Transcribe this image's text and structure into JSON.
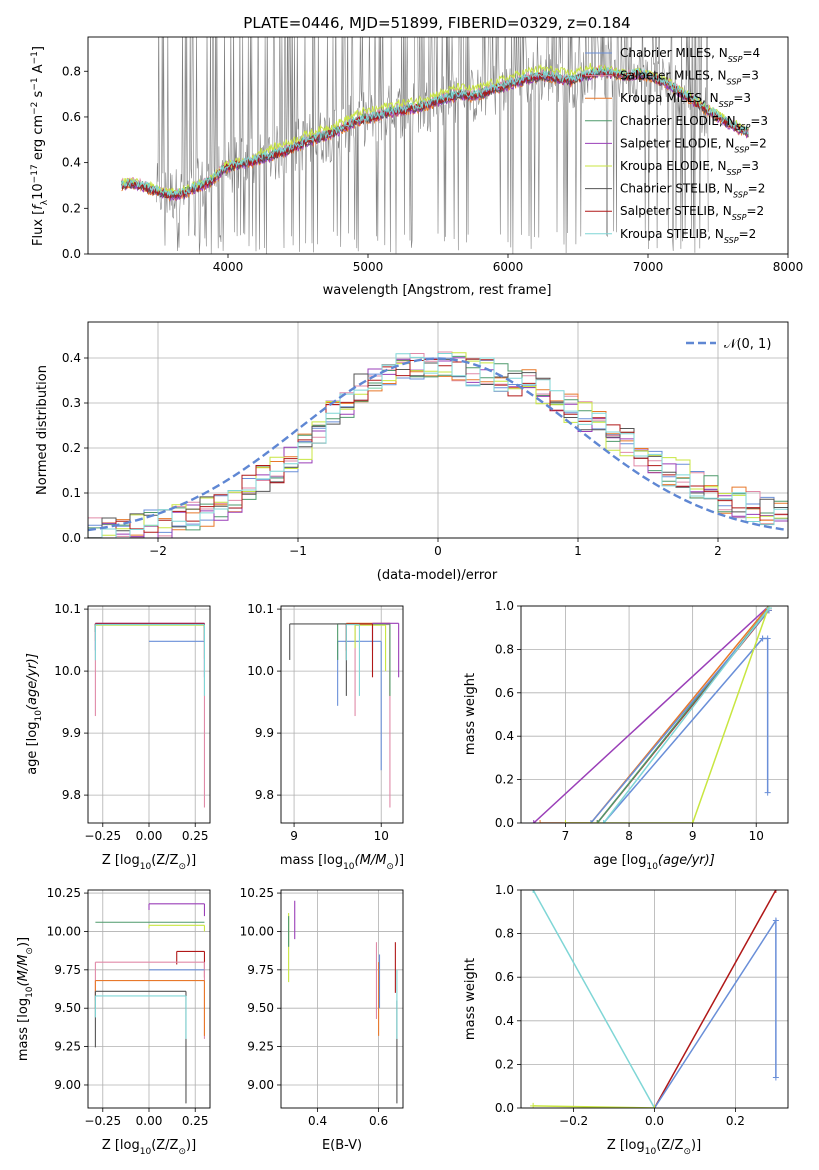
{
  "colors": {
    "chabrier_miles": "#6a8fd8",
    "salpeter_miles": "#e08aa8",
    "kroupa_miles": "#e8782a",
    "chabrier_elodie": "#4f9a6c",
    "salpeter_elodie": "#9a3fb8",
    "kroupa_elodie": "#c8e640",
    "chabrier_stelib": "#555555",
    "salpeter_stelib": "#b01818",
    "kroupa_stelib": "#7fd6d6",
    "data": "#808080",
    "gauss": "#5f87d3"
  },
  "legend": [
    {
      "base": "Chabrier MILES, N",
      "val": "=4",
      "color": "#6a8fd8"
    },
    {
      "base": "Salpeter MILES, N",
      "val": "=3",
      "color": "#e08aa8"
    },
    {
      "base": "Kroupa MILES, N",
      "val": "=3",
      "color": "#e8782a"
    },
    {
      "base": "Chabrier ELODIE, N",
      "val": "=3",
      "color": "#4f9a6c"
    },
    {
      "base": "Salpeter ELODIE, N",
      "val": "=2",
      "color": "#9a3fb8"
    },
    {
      "base": "Kroupa ELODIE, N",
      "val": "=3",
      "color": "#c8e640"
    },
    {
      "base": "Chabrier STELIB, N",
      "val": "=2",
      "color": "#555555"
    },
    {
      "base": "Salpeter STELIB, N",
      "val": "=2",
      "color": "#b01818"
    },
    {
      "base": "Kroupa STELIB, N",
      "val": "=2",
      "color": "#7fd6d6"
    }
  ],
  "chart_data": [
    {
      "type": "line",
      "title": "PLATE=0446, MJD=51899, FIBERID=0329, z=0.184",
      "xlabel": "wavelength [Angstrom, rest frame]",
      "ylabel_pre": "Flux [",
      "ylabel_sym": "f",
      "ylabel_sub": "λ",
      "ylabel_mid": "10",
      "ylabel_e1": "−17",
      "ylabel_txt": " erg cm",
      "ylabel_e2": "−2",
      "ylabel_s": " s",
      "ylabel_e3": "−1",
      "ylabel_a": " A",
      "ylabel_e4": "−1",
      "ylabel_end": "]",
      "xlim": [
        3000,
        8000
      ],
      "ylim": [
        0,
        0.95
      ],
      "xticks": [
        4000,
        5000,
        6000,
        7000,
        8000
      ],
      "yticks": [
        0.0,
        0.2,
        0.4,
        0.6,
        0.8
      ],
      "model_continuum": {
        "x": [
          3240,
          3300,
          3380,
          3460,
          3520,
          3580,
          3650,
          3700,
          3760,
          3820,
          3880,
          3930,
          3990,
          4060,
          4150,
          4250,
          4350,
          4450,
          4550,
          4650,
          4750,
          4850,
          4950,
          5050,
          5150,
          5250,
          5350,
          5450,
          5550,
          5650,
          5750,
          5850,
          5950,
          6050,
          6150,
          6250,
          6350,
          6450,
          6550,
          6650,
          6750,
          6850,
          6950,
          7050,
          7150,
          7250,
          7350,
          7450,
          7550,
          7650,
          7720
        ],
        "y": [
          0.3,
          0.31,
          0.3,
          0.28,
          0.27,
          0.26,
          0.26,
          0.27,
          0.29,
          0.3,
          0.32,
          0.35,
          0.38,
          0.39,
          0.4,
          0.42,
          0.44,
          0.46,
          0.49,
          0.51,
          0.53,
          0.56,
          0.59,
          0.6,
          0.62,
          0.63,
          0.64,
          0.66,
          0.68,
          0.7,
          0.69,
          0.71,
          0.73,
          0.75,
          0.77,
          0.78,
          0.77,
          0.76,
          0.78,
          0.8,
          0.79,
          0.78,
          0.79,
          0.77,
          0.74,
          0.7,
          0.66,
          0.62,
          0.58,
          0.55,
          0.53
        ]
      },
      "data_range": [
        3490,
        7430
      ]
    },
    {
      "type": "bar",
      "xlabel": "(data-model)/error",
      "ylabel": "Normed distribution",
      "xlim": [
        -2.5,
        2.5
      ],
      "ylim": [
        0,
        0.48
      ],
      "xticks": [
        -2,
        -1,
        0,
        1,
        2
      ],
      "yticks": [
        0.0,
        0.1,
        0.2,
        0.3,
        0.4
      ],
      "legend_label": "𝒩(0, 1)",
      "bin_edges": [
        -2.5,
        -2.4,
        -2.3,
        -2.2,
        -2.1,
        -2.0,
        -1.9,
        -1.8,
        -1.7,
        -1.6,
        -1.5,
        -1.4,
        -1.3,
        -1.2,
        -1.1,
        -1.0,
        -0.9,
        -0.8,
        -0.7,
        -0.6,
        -0.5,
        -0.4,
        -0.3,
        -0.2,
        -0.1,
        0.0,
        0.1,
        0.2,
        0.3,
        0.4,
        0.5,
        0.6,
        0.7,
        0.8,
        0.9,
        1.0,
        1.1,
        1.2,
        1.3,
        1.4,
        1.5,
        1.6,
        1.7,
        1.8,
        1.9,
        2.0,
        2.1,
        2.2,
        2.3,
        2.4,
        2.5
      ],
      "hist_base": [
        0.01,
        0.01,
        0.01,
        0.02,
        0.03,
        0.03,
        0.04,
        0.05,
        0.06,
        0.07,
        0.09,
        0.11,
        0.13,
        0.15,
        0.18,
        0.2,
        0.23,
        0.27,
        0.3,
        0.33,
        0.36,
        0.37,
        0.38,
        0.38,
        0.37,
        0.38,
        0.38,
        0.37,
        0.37,
        0.36,
        0.35,
        0.34,
        0.33,
        0.31,
        0.29,
        0.27,
        0.25,
        0.23,
        0.21,
        0.19,
        0.17,
        0.15,
        0.14,
        0.12,
        0.11,
        0.09,
        0.08,
        0.07,
        0.06,
        0.06
      ],
      "gauss_mu": 0,
      "gauss_sigma": 1
    },
    {
      "type": "scatter",
      "xlabel_pre": "Z [log",
      "xlabel_sub": "10",
      "xlabel_post": "(Z/Z",
      "xlabel_end": ")]",
      "ylabel_pre": "age  [log",
      "ylabel_sub": "10",
      "ylabel_post": "(age/yr)]",
      "xlim": [
        -0.33,
        0.33
      ],
      "ylim": [
        9.755,
        10.105
      ],
      "xticks": [
        -0.25,
        0.0,
        0.25
      ],
      "xtick_labels": [
        "−0.25",
        "0.00",
        "0.25"
      ],
      "yticks": [
        9.8,
        9.9,
        10.0,
        10.1
      ],
      "segments": [
        {
          "c": "chabrier_miles",
          "x1": -0.29,
          "x2": 0.3,
          "y": 10.075,
          "ylow": 10.075
        },
        {
          "c": "chabrier_miles",
          "x1": 0.0,
          "x2": 0.3,
          "y": 10.048,
          "ylow": 10.048
        },
        {
          "c": "salpeter_miles",
          "x1": -0.29,
          "x2": 0.3,
          "y": 10.075,
          "ylow": 9.78
        },
        {
          "c": "kroupa_miles",
          "x1": -0.29,
          "x2": 0.3,
          "y": 10.077,
          "ylow": 10.02
        },
        {
          "c": "chabrier_elodie",
          "x1": -0.29,
          "x2": 0.3,
          "y": 10.076,
          "ylow": 10.05
        },
        {
          "c": "salpeter_elodie",
          "x1": -0.29,
          "x2": 0.3,
          "y": 10.077,
          "ylow": 9.99
        },
        {
          "c": "kroupa_elodie",
          "x1": -0.29,
          "x2": 0.3,
          "y": 10.074,
          "ylow": 10.06
        },
        {
          "c": "chabrier_stelib",
          "x1": -0.29,
          "x2": 0.3,
          "y": 10.076,
          "ylow": 10.05
        },
        {
          "c": "salpeter_stelib",
          "x1": -0.29,
          "x2": 0.3,
          "y": 10.076,
          "ylow": 10.07
        },
        {
          "c": "kroupa_stelib",
          "x1": -0.29,
          "x2": 0.3,
          "y": 10.075,
          "ylow": 9.96
        }
      ]
    },
    {
      "type": "scatter",
      "xlabel_pre": "mass [log",
      "xlabel_sub": "10",
      "xlabel_post": "(M/M",
      "xlabel_end": ")]",
      "xlim": [
        8.85,
        10.25
      ],
      "ylim": [
        9.755,
        10.105
      ],
      "xticks": [
        9,
        10
      ],
      "yticks": [
        9.8,
        9.9,
        10.0,
        10.1
      ],
      "segments": [
        {
          "c": "chabrier_miles",
          "x1": 9.5,
          "x2": 10.0,
          "y": 10.048,
          "ylow": 9.84
        },
        {
          "c": "salpeter_miles",
          "x1": 9.7,
          "x2": 10.1,
          "y": 10.075,
          "ylow": 9.78
        },
        {
          "c": "kroupa_miles",
          "x1": 9.6,
          "x2": 10.1,
          "y": 10.077,
          "ylow": 9.96
        },
        {
          "c": "chabrier_elodie",
          "x1": 9.5,
          "x2": 10.1,
          "y": 10.076,
          "ylow": 9.96
        },
        {
          "c": "salpeter_elodie",
          "x1": 9.9,
          "x2": 10.2,
          "y": 10.077,
          "ylow": 9.99
        },
        {
          "c": "kroupa_elodie",
          "x1": 9.7,
          "x2": 10.05,
          "y": 10.074,
          "ylow": 10.0
        },
        {
          "c": "chabrier_stelib",
          "x1": 8.95,
          "x2": 9.6,
          "y": 10.076,
          "ylow": 9.96
        },
        {
          "c": "salpeter_stelib",
          "x1": 9.6,
          "x2": 9.9,
          "y": 10.076,
          "ylow": 9.99
        },
        {
          "c": "kroupa_stelib",
          "x1": 9.6,
          "x2": 9.75,
          "y": 10.075,
          "ylow": 9.96
        }
      ]
    },
    {
      "type": "line",
      "xlabel_pre": "age  [log",
      "xlabel_sub": "10",
      "xlabel_post": "(age/yr)]",
      "ylabel": "mass weight",
      "xlim": [
        6.3,
        10.5
      ],
      "ylim": [
        0,
        1.0
      ],
      "xticks": [
        7,
        8,
        9,
        10
      ],
      "yticks": [
        0.0,
        0.2,
        0.4,
        0.6,
        0.8,
        1.0
      ],
      "lines": [
        {
          "c": "salpeter_elodie",
          "x": [
            6.5,
            10.2
          ],
          "y": [
            0.0,
            1.0
          ]
        },
        {
          "c": "kroupa_miles",
          "x": [
            6.6,
            7.4,
            10.2
          ],
          "y": [
            0.0,
            0.0,
            1.0
          ]
        },
        {
          "c": "salpeter_stelib",
          "x": [
            7.5,
            10.2
          ],
          "y": [
            0.0,
            0.98
          ]
        },
        {
          "c": "chabrier_elodie",
          "x": [
            7.5,
            10.2
          ],
          "y": [
            0.0,
            0.99
          ]
        },
        {
          "c": "chabrier_miles",
          "x": [
            7.6,
            10.1,
            10.1,
            10.18,
            10.18
          ],
          "y": [
            0.0,
            0.85,
            0.85,
            0.85,
            0.14
          ]
        },
        {
          "c": "chabrier_miles",
          "x": [
            7.4,
            10.2
          ],
          "y": [
            0.0,
            0.98
          ]
        },
        {
          "c": "kroupa_elodie",
          "x": [
            7.0,
            9.0,
            10.2
          ],
          "y": [
            0.0,
            0.0,
            1.0
          ]
        },
        {
          "c": "kroupa_stelib",
          "x": [
            7.6,
            10.2
          ],
          "y": [
            0.0,
            0.99
          ]
        }
      ]
    },
    {
      "type": "scatter",
      "xlabel_pre": "Z [log",
      "xlabel_sub": "10",
      "xlabel_post": "(Z/Z",
      "xlabel_end": ")]",
      "ylabel_pre": "mass [log",
      "ylabel_sub": "10",
      "ylabel_post": "(M/M",
      "ylabel_end": ")]",
      "xlim": [
        -0.33,
        0.33
      ],
      "ylim": [
        8.85,
        10.27
      ],
      "xticks": [
        -0.25,
        0.0,
        0.25
      ],
      "xtick_labels": [
        "−0.25",
        "0.00",
        "0.25"
      ],
      "yticks": [
        9.0,
        9.25,
        9.5,
        9.75,
        10.0,
        10.25
      ],
      "ytick_labels": [
        "9.00",
        "9.25",
        "9.50",
        "9.75",
        "10.00",
        "10.25"
      ],
      "segments": [
        {
          "c": "salpeter_elodie",
          "x1": 0.0,
          "x2": 0.3,
          "y": 10.18,
          "ylow": 10.1
        },
        {
          "c": "chabrier_elodie",
          "x1": -0.29,
          "x2": 0.3,
          "y": 10.06,
          "ylow": 10.06
        },
        {
          "c": "kroupa_elodie",
          "x1": 0.0,
          "x2": 0.3,
          "y": 10.04,
          "ylow": 10.0
        },
        {
          "c": "salpeter_stelib",
          "x1": 0.15,
          "x2": 0.3,
          "y": 9.87,
          "ylow": 9.7
        },
        {
          "c": "salpeter_miles",
          "x1": -0.29,
          "x2": 0.3,
          "y": 9.8,
          "ylow": 9.3
        },
        {
          "c": "chabrier_miles",
          "x1": 0.0,
          "x2": 0.3,
          "y": 9.75,
          "ylow": 9.75
        },
        {
          "c": "kroupa_miles",
          "x1": -0.29,
          "x2": 0.3,
          "y": 9.68,
          "ylow": 9.32
        },
        {
          "c": "chabrier_stelib",
          "x1": -0.29,
          "x2": 0.2,
          "y": 9.61,
          "ylow": 8.88
        },
        {
          "c": "kroupa_stelib",
          "x1": -0.29,
          "x2": 0.2,
          "y": 9.58,
          "ylow": 9.3
        }
      ]
    },
    {
      "type": "scatter",
      "xlabel": "E(B-V)",
      "xlim": [
        0.28,
        0.68
      ],
      "ylim": [
        8.85,
        10.27
      ],
      "xticks": [
        0.4,
        0.6
      ],
      "yticks": [
        9.0,
        9.25,
        9.5,
        9.75,
        10.0,
        10.25
      ],
      "ytick_labels": [
        "9.00",
        "9.25",
        "9.50",
        "9.75",
        "10.00",
        "10.25"
      ],
      "vlines": [
        {
          "c": "salpeter_elodie",
          "x": 0.325,
          "y1": 9.95,
          "y2": 10.2
        },
        {
          "c": "kroupa_elodie",
          "x": 0.305,
          "y1": 9.67,
          "y2": 10.12
        },
        {
          "c": "chabrier_elodie",
          "x": 0.305,
          "y1": 9.9,
          "y2": 10.1
        },
        {
          "c": "salpeter_miles",
          "x": 0.593,
          "y1": 9.43,
          "y2": 9.93
        },
        {
          "c": "kroupa_miles",
          "x": 0.6,
          "y1": 9.32,
          "y2": 9.8
        },
        {
          "c": "chabrier_miles",
          "x": 0.603,
          "y1": 9.5,
          "y2": 9.85
        },
        {
          "c": "salpeter_stelib",
          "x": 0.655,
          "y1": 9.6,
          "y2": 9.93
        },
        {
          "c": "chabrier_stelib",
          "x": 0.66,
          "y1": 8.88,
          "y2": 9.55
        },
        {
          "c": "kroupa_stelib",
          "x": 0.66,
          "y1": 9.3,
          "y2": 9.75
        }
      ]
    },
    {
      "type": "line",
      "xlabel_pre": "Z [log",
      "xlabel_sub": "10",
      "xlabel_post": "(Z/Z",
      "xlabel_end": ")]",
      "ylabel": "mass weight",
      "xlim": [
        -0.33,
        0.33
      ],
      "ylim": [
        0,
        1.0
      ],
      "xticks": [
        -0.2,
        0.0,
        0.2
      ],
      "xtick_labels": [
        "−0.2",
        "0.0",
        "0.2"
      ],
      "yticks": [
        0.0,
        0.2,
        0.4,
        0.6,
        0.8,
        1.0
      ],
      "lines": [
        {
          "c": "kroupa_stelib",
          "x": [
            -0.3,
            0.0
          ],
          "y": [
            1.0,
            0.0
          ]
        },
        {
          "c": "salpeter_stelib",
          "x": [
            0.0,
            0.3
          ],
          "y": [
            0.0,
            1.0
          ]
        },
        {
          "c": "chabrier_miles",
          "x": [
            0.0,
            0.3,
            0.3
          ],
          "y": [
            0.0,
            0.86,
            0.14
          ]
        },
        {
          "c": "kroupa_elodie",
          "x": [
            -0.3,
            0.0
          ],
          "y": [
            0.01,
            0.0
          ]
        }
      ]
    }
  ]
}
